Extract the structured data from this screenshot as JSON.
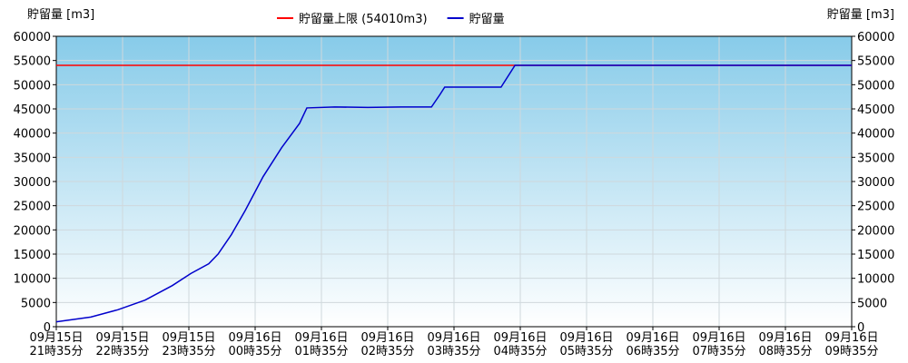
{
  "chart_data": {
    "type": "line",
    "y_label": "貯留量 [m3]",
    "y2_label": "貯留量 [m3]",
    "xlim": [
      0,
      12
    ],
    "xticks": [
      {
        "value": 0,
        "label": "09月15日\n21時35分"
      },
      {
        "value": 1,
        "label": "09月15日\n22時35分"
      },
      {
        "value": 2,
        "label": "09月15日\n23時35分"
      },
      {
        "value": 3,
        "label": "09月16日\n00時35分"
      },
      {
        "value": 4,
        "label": "09月16日\n01時35分"
      },
      {
        "value": 5,
        "label": "09月16日\n02時35分"
      },
      {
        "value": 6,
        "label": "09月16日\n03時35分"
      },
      {
        "value": 7,
        "label": "09月16日\n04時35分"
      },
      {
        "value": 8,
        "label": "09月16日\n05時35分"
      },
      {
        "value": 9,
        "label": "09月16日\n06時35分"
      },
      {
        "value": 10,
        "label": "09月16日\n07時35分"
      },
      {
        "value": 11,
        "label": "09月16日\n08時35分"
      },
      {
        "value": 12,
        "label": "09月16日\n09時35分"
      }
    ],
    "ylim": [
      0,
      60000
    ],
    "yticks": [
      0,
      5000,
      10000,
      15000,
      20000,
      25000,
      30000,
      35000,
      40000,
      45000,
      50000,
      55000,
      60000
    ],
    "y2lim": [
      0,
      60000
    ],
    "y2ticks": [
      0,
      5000,
      10000,
      15000,
      20000,
      25000,
      30000,
      35000,
      40000,
      45000,
      50000,
      55000,
      60000
    ],
    "grid": true,
    "series": [
      {
        "name": "貯留量上限 (54010m3)",
        "color": "#ff0000",
        "x": [
          0,
          12
        ],
        "values": [
          54010,
          54010
        ]
      },
      {
        "name": "貯留量",
        "color": "#0000cc",
        "x": [
          0,
          0.52,
          0.93,
          1.34,
          1.75,
          2.03,
          2.3,
          2.44,
          2.64,
          2.85,
          3.12,
          3.4,
          3.67,
          3.78,
          4.2,
          4.7,
          5.2,
          5.66,
          5.79,
          5.86,
          6.3,
          6.71,
          6.92,
          12
        ],
        "values": [
          1000,
          2000,
          3500,
          5500,
          8500,
          11000,
          13000,
          15000,
          19000,
          24000,
          31000,
          37000,
          42000,
          45200,
          45400,
          45300,
          45400,
          45400,
          48000,
          49500,
          49500,
          49500,
          54010,
          54010
        ]
      }
    ]
  }
}
